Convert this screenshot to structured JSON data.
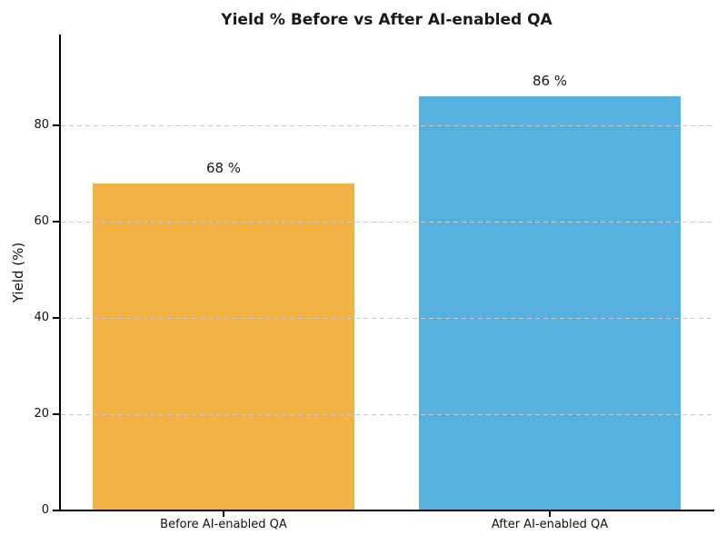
{
  "chart_data": {
    "type": "bar",
    "title": "Yield % Before vs After AI-enabled QA",
    "xlabel": "",
    "ylabel": "Yield (%)",
    "categories": [
      "Before AI-enabled QA",
      "After AI-enabled QA"
    ],
    "values": [
      68,
      86
    ],
    "value_labels": [
      "68 %",
      "86 %"
    ],
    "bar_colors": [
      "#F2B344",
      "#56B1E0"
    ],
    "yticks": [
      0,
      20,
      40,
      60,
      80
    ],
    "ylim": [
      0,
      98.9
    ],
    "grid": "horizontal-dashed",
    "grid_color": "#c9c9c9",
    "legend": "none"
  }
}
